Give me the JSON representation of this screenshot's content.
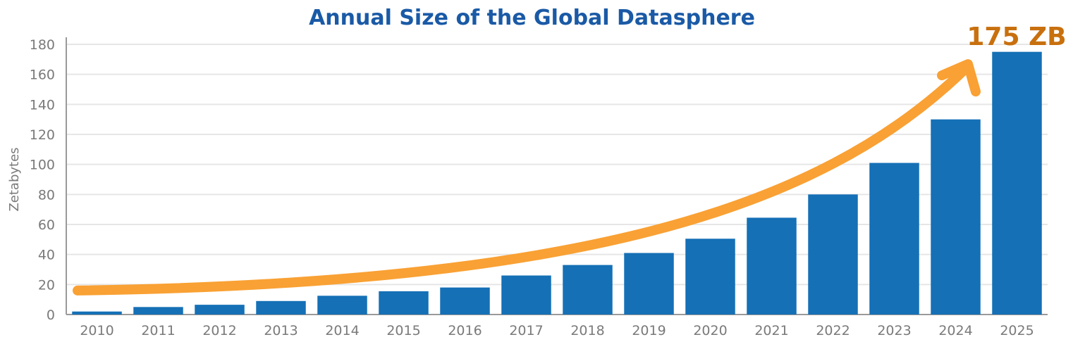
{
  "chart_data": {
    "type": "bar",
    "title": "Annual Size of the Global Datasphere",
    "xlabel": "",
    "ylabel": "Zetabytes",
    "categories": [
      "2010",
      "2011",
      "2012",
      "2013",
      "2014",
      "2015",
      "2016",
      "2017",
      "2018",
      "2019",
      "2020",
      "2021",
      "2022",
      "2023",
      "2024",
      "2025"
    ],
    "values": [
      2,
      5,
      6.5,
      9,
      12.5,
      15.5,
      18,
      26,
      33,
      41,
      50.5,
      64.5,
      80,
      101,
      130,
      175
    ],
    "ylim": [
      0,
      180
    ],
    "yticks": [
      "0",
      "20",
      "40",
      "60",
      "80",
      "100",
      "120",
      "140",
      "160",
      "180"
    ],
    "grid": true,
    "legend": "none",
    "annotation": {
      "text": "175 ZB",
      "color": "#c8700e"
    },
    "colors": {
      "bar": "#1570b6",
      "arrow": "#f9a134",
      "title": "#1a5aa6",
      "tick": "#7a7a7a",
      "grid": "#e6e6e6",
      "axis": "#9a9a9a"
    }
  }
}
